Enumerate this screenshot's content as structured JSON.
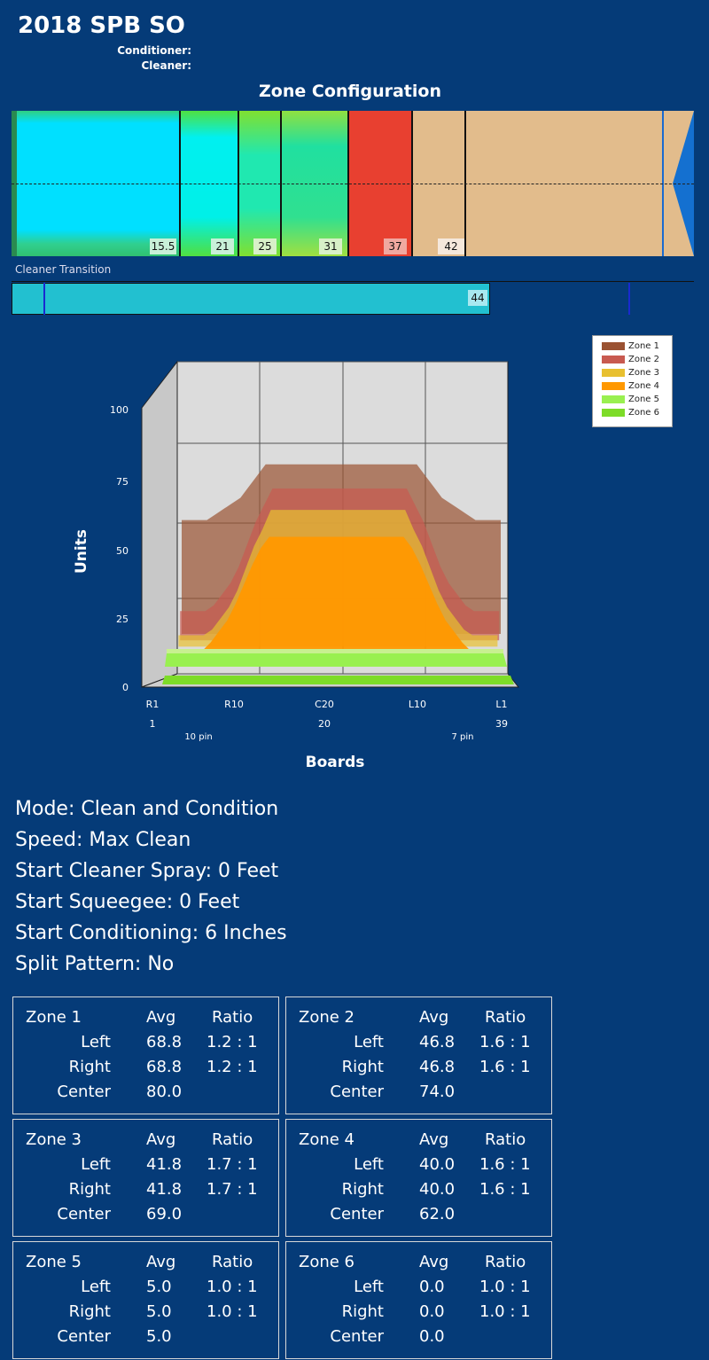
{
  "header": {
    "title": "2018 SPB SO",
    "conditioner_label": "Conditioner:",
    "cleaner_label": "Cleaner:"
  },
  "zone_config": {
    "title": "Zone Configuration",
    "markers": [
      "15.5",
      "21",
      "25",
      "31",
      "37",
      "42"
    ]
  },
  "cleaner_transition": {
    "label": "Cleaner Transition",
    "value": "44"
  },
  "chart_data": {
    "type": "area",
    "ylabel": "Units",
    "xlabel": "Boards",
    "yticks": [
      "0",
      "25",
      "50",
      "75",
      "100"
    ],
    "ylim": [
      0,
      100
    ],
    "xticks": [
      "R1",
      "R10",
      "C20",
      "L10",
      "L1"
    ],
    "xticks2": [
      "1",
      "20",
      "39"
    ],
    "pin_labels": [
      "10 pin",
      "7 pin"
    ],
    "boards": [
      1,
      2,
      3,
      4,
      5,
      6,
      7,
      8,
      9,
      10,
      11,
      12,
      13,
      14,
      15,
      16,
      17,
      18,
      19,
      20,
      21,
      22,
      23,
      24,
      25,
      26,
      27,
      28,
      29,
      30,
      31,
      32,
      33,
      34,
      35,
      36,
      37,
      38,
      39
    ],
    "series": [
      {
        "name": "Zone 1",
        "color": "#9a5232",
        "profile": [
          60,
          60,
          60,
          60,
          62,
          64,
          66,
          68,
          72,
          76,
          80,
          80,
          80,
          80,
          80,
          80,
          80,
          80,
          80,
          80,
          80,
          80,
          80,
          80,
          80,
          80,
          80,
          80,
          80,
          76,
          72,
          68,
          66,
          64,
          62,
          60,
          60,
          60,
          60
        ]
      },
      {
        "name": "Zone 2",
        "color": "#c85a50",
        "profile": [
          30,
          30,
          30,
          30,
          32,
          36,
          40,
          46,
          54,
          62,
          68,
          74,
          74,
          74,
          74,
          74,
          74,
          74,
          74,
          74,
          74,
          74,
          74,
          74,
          74,
          74,
          74,
          74,
          68,
          62,
          54,
          46,
          40,
          36,
          32,
          30,
          30,
          30,
          30
        ]
      },
      {
        "name": "Zone 3",
        "color": "#e8c030",
        "profile": [
          24,
          24,
          24,
          24,
          26,
          30,
          34,
          40,
          48,
          56,
          62,
          69,
          69,
          69,
          69,
          69,
          69,
          69,
          69,
          69,
          69,
          69,
          69,
          69,
          69,
          69,
          69,
          69,
          62,
          56,
          48,
          40,
          34,
          30,
          26,
          24,
          24,
          24,
          24
        ]
      },
      {
        "name": "Zone 4",
        "color": "#ff9800",
        "profile": [
          21,
          21,
          21,
          21,
          24,
          28,
          32,
          38,
          45,
          52,
          58,
          62,
          62,
          62,
          62,
          62,
          62,
          62,
          62,
          62,
          62,
          62,
          62,
          62,
          62,
          62,
          62,
          62,
          58,
          52,
          45,
          38,
          32,
          28,
          24,
          21,
          21,
          21,
          21
        ]
      },
      {
        "name": "Zone 5",
        "color": "#99f050",
        "profile": [
          5,
          5,
          5,
          5,
          5,
          5,
          5,
          5,
          5,
          5,
          5,
          5,
          5,
          5,
          5,
          5,
          5,
          5,
          5,
          5,
          5,
          5,
          5,
          5,
          5,
          5,
          5,
          5,
          5,
          5,
          5,
          5,
          5,
          5,
          5,
          5,
          5,
          5,
          5
        ]
      },
      {
        "name": "Zone 6",
        "color": "#7ddc28",
        "profile": [
          0,
          0,
          0,
          0,
          0,
          0,
          0,
          0,
          0,
          0,
          0,
          0,
          0,
          0,
          0,
          0,
          0,
          0,
          0,
          0,
          0,
          0,
          0,
          0,
          0,
          0,
          0,
          0,
          0,
          0,
          0,
          0,
          0,
          0,
          0,
          0,
          0,
          0,
          0
        ]
      }
    ]
  },
  "settings": [
    "Mode: Clean and Condition",
    "Speed: Max Clean",
    "Start Cleaner Spray: 0 Feet",
    "Start Squeegee: 0 Feet",
    "Start Conditioning: 6 Inches",
    "Split Pattern: No"
  ],
  "columns": {
    "avg": "Avg",
    "ratio": "Ratio",
    "left": "Left",
    "right": "Right",
    "center": "Center"
  },
  "zones": [
    {
      "name": "Zone 1",
      "left_avg": "68.8",
      "left_ratio": "1.2 : 1",
      "right_avg": "68.8",
      "right_ratio": "1.2 : 1",
      "center": "80.0"
    },
    {
      "name": "Zone 2",
      "left_avg": "46.8",
      "left_ratio": "1.6 : 1",
      "right_avg": "46.8",
      "right_ratio": "1.6 : 1",
      "center": "74.0"
    },
    {
      "name": "Zone 3",
      "left_avg": "41.8",
      "left_ratio": "1.7 : 1",
      "right_avg": "41.8",
      "right_ratio": "1.7 : 1",
      "center": "69.0"
    },
    {
      "name": "Zone 4",
      "left_avg": "40.0",
      "left_ratio": "1.6 : 1",
      "right_avg": "40.0",
      "right_ratio": "1.6 : 1",
      "center": "62.0"
    },
    {
      "name": "Zone 5",
      "left_avg": "5.0",
      "left_ratio": "1.0 : 1",
      "right_avg": "5.0",
      "right_ratio": "1.0 : 1",
      "center": "5.0"
    },
    {
      "name": "Zone 6",
      "left_avg": "0.0",
      "left_ratio": "1.0 : 1",
      "right_avg": "0.0",
      "right_ratio": "1.0 : 1",
      "center": "0.0"
    }
  ]
}
